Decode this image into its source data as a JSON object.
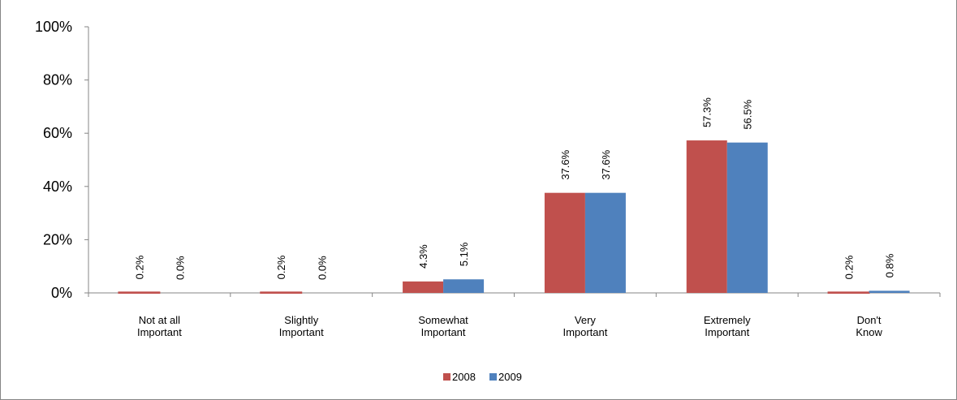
{
  "chart_data": {
    "type": "bar",
    "title": "",
    "xlabel": "",
    "ylabel": "",
    "ylim": [
      0,
      100
    ],
    "yticks": [
      0,
      20,
      40,
      60,
      80,
      100
    ],
    "ytick_labels": [
      "0%",
      "20%",
      "40%",
      "60%",
      "80%",
      "100%"
    ],
    "grid": false,
    "legend_position": "bottom",
    "categories": [
      [
        "Not at all",
        "Important"
      ],
      [
        "Slightly",
        "Important"
      ],
      [
        "Somewhat",
        "Important"
      ],
      [
        "Very",
        "Important"
      ],
      [
        "Extremely",
        "Important"
      ],
      [
        "Don't",
        "Know"
      ]
    ],
    "series": [
      {
        "name": "2008",
        "color": "#C0504D",
        "values": [
          0.2,
          0.2,
          4.3,
          37.6,
          57.3,
          0.2
        ],
        "labels": [
          "0.2%",
          "0.2%",
          "4.3%",
          "37.6%",
          "57.3%",
          "0.2%"
        ]
      },
      {
        "name": "2009",
        "color": "#4F81BD",
        "values": [
          0.0,
          0.0,
          5.1,
          37.6,
          56.5,
          0.8
        ],
        "labels": [
          "0.0%",
          "0.0%",
          "5.1%",
          "37.6%",
          "56.5%",
          "0.8%"
        ]
      }
    ],
    "axis_color": "#868686",
    "frame_color": "#868686"
  }
}
